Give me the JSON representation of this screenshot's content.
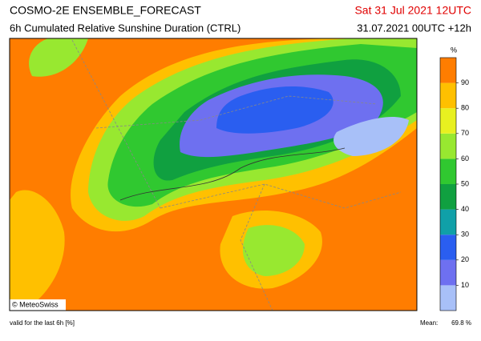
{
  "header": {
    "title": "COSMO-2E ENSEMBLE_FORECAST",
    "subtitle": "6h Cumulated Relative Sunshine Duration (CTRL)",
    "valid_time": "Sat 31 Jul 2021 12UTC",
    "run": "31.07.2021 00UTC +12h"
  },
  "map": {
    "credit": "© MeteoSwiss"
  },
  "colorbar": {
    "unit": "%",
    "ticks": [
      "10",
      "20",
      "30",
      "40",
      "50",
      "60",
      "70",
      "80",
      "90"
    ],
    "colors": [
      "#a8c0f8",
      "#6e70f0",
      "#2a5ef0",
      "#10a0a8",
      "#10a040",
      "#30c830",
      "#98e830",
      "#e8f020",
      "#ffc000",
      "#ff7d00"
    ]
  },
  "footer": {
    "note": "valid for the last 6h [%]",
    "mean_label": "Mean:",
    "mean_value": "69.8 %"
  }
}
